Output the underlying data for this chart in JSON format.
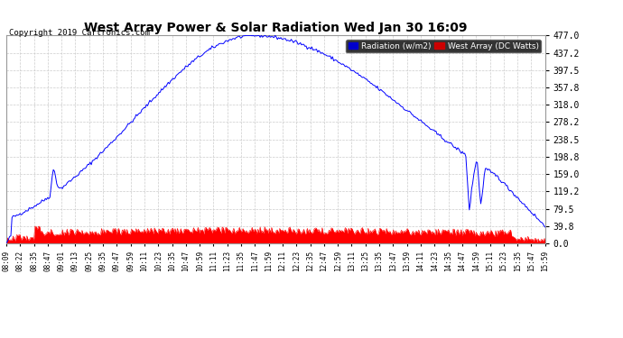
{
  "title": "West Array Power & Solar Radiation Wed Jan 30 16:09",
  "copyright": "Copyright 2019 Cartronics.com",
  "legend_radiation": "Radiation (w/m2)",
  "legend_west": "West Array (DC Watts)",
  "legend_radiation_bg": "#0000cc",
  "legend_west_bg": "#cc0000",
  "yticks": [
    0.0,
    39.8,
    79.5,
    119.2,
    159.0,
    198.8,
    238.5,
    278.2,
    318.0,
    357.8,
    397.5,
    437.2,
    477.0
  ],
  "ymax": 477.0,
  "ymin": 0.0,
  "bg_color": "#ffffff",
  "plot_bg_color": "#ffffff",
  "grid_color": "#cccccc",
  "blue_line_color": "#0000ff",
  "red_fill_color": "#ff0000",
  "x_tick_labels": [
    "08:09",
    "08:22",
    "08:35",
    "08:47",
    "09:01",
    "09:13",
    "09:25",
    "09:35",
    "09:47",
    "09:59",
    "10:11",
    "10:23",
    "10:35",
    "10:47",
    "10:59",
    "11:11",
    "11:23",
    "11:35",
    "11:47",
    "11:59",
    "12:11",
    "12:23",
    "12:35",
    "12:47",
    "12:59",
    "13:11",
    "13:25",
    "13:35",
    "13:47",
    "13:59",
    "14:11",
    "14:23",
    "14:35",
    "14:47",
    "14:59",
    "15:11",
    "15:23",
    "15:35",
    "15:47",
    "15:59"
  ]
}
